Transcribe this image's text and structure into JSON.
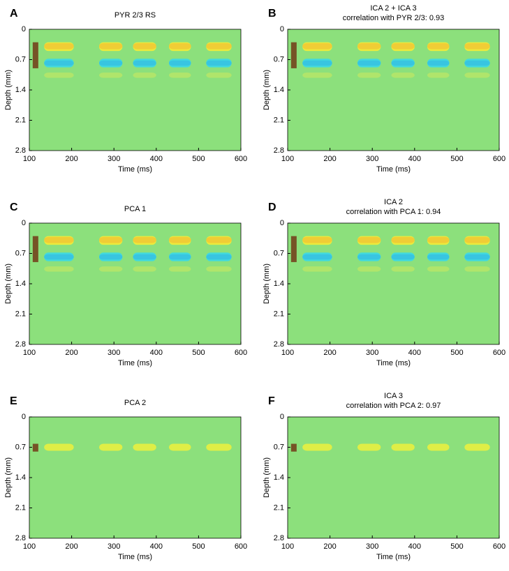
{
  "chart_data": [
    {
      "type": "heatmap",
      "panel_label": "A",
      "title": "PYR 2/3 RS",
      "xlabel": "Time (ms)",
      "ylabel": "Depth (mm)",
      "xlim": [
        100,
        600
      ],
      "xticks": [
        100,
        200,
        300,
        400,
        500,
        600
      ],
      "ylim": [
        2.8,
        0
      ],
      "yticks": [
        0,
        0.7,
        1.4,
        2.1,
        2.8
      ]
    },
    {
      "type": "heatmap",
      "panel_label": "B",
      "title": "ICA 2 + ICA 3",
      "subtitle": "correlation with PYR 2/3: 0.93",
      "xlabel": "Time (ms)",
      "ylabel": "Depth (mm)",
      "xlim": [
        100,
        600
      ],
      "xticks": [
        100,
        200,
        300,
        400,
        500,
        600
      ],
      "ylim": [
        2.8,
        0
      ],
      "yticks": [
        0,
        0.7,
        1.4,
        2.1,
        2.8
      ]
    },
    {
      "type": "heatmap",
      "panel_label": "C",
      "title": "PCA 1",
      "xlabel": "Time (ms)",
      "ylabel": "Depth (mm)",
      "xlim": [
        100,
        600
      ],
      "xticks": [
        100,
        200,
        300,
        400,
        500,
        600
      ],
      "ylim": [
        2.8,
        0
      ],
      "yticks": [
        0,
        0.7,
        1.4,
        2.1,
        2.8
      ]
    },
    {
      "type": "heatmap",
      "panel_label": "D",
      "title": "ICA 2",
      "subtitle": "correlation with PCA 1: 0.94",
      "xlabel": "Time (ms)",
      "ylabel": "Depth (mm)",
      "xlim": [
        100,
        600
      ],
      "xticks": [
        100,
        200,
        300,
        400,
        500,
        600
      ],
      "ylim": [
        2.8,
        0
      ],
      "yticks": [
        0,
        0.7,
        1.4,
        2.1,
        2.8
      ]
    },
    {
      "type": "heatmap",
      "panel_label": "E",
      "title": "PCA 2",
      "xlabel": "Time (ms)",
      "ylabel": "Depth (mm)",
      "xlim": [
        100,
        600
      ],
      "xticks": [
        100,
        200,
        300,
        400,
        500,
        600
      ],
      "ylim": [
        2.8,
        0
      ],
      "yticks": [
        0,
        0.7,
        1.4,
        2.1,
        2.8
      ]
    },
    {
      "type": "heatmap",
      "panel_label": "F",
      "title": "ICA 3",
      "subtitle": "correlation with PCA 2: 0.97",
      "xlabel": "Time (ms)",
      "ylabel": "Depth (mm)",
      "xlim": [
        100,
        600
      ],
      "xticks": [
        100,
        200,
        300,
        400,
        500,
        600
      ],
      "ylim": [
        2.8,
        0
      ],
      "yticks": [
        0,
        0.7,
        1.4,
        2.1,
        2.8
      ]
    }
  ]
}
